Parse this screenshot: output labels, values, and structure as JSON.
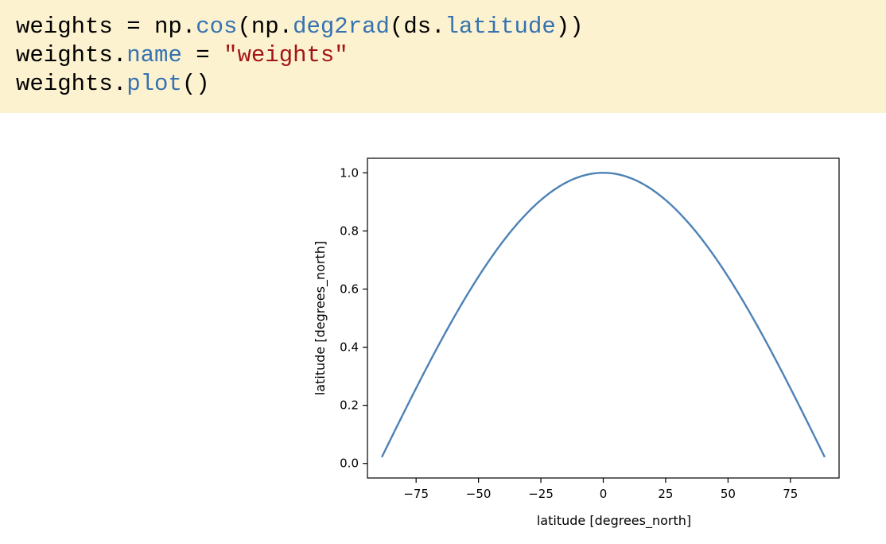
{
  "code_cell": {
    "lines": [
      [
        {
          "text": "weights = np.",
          "kind": "plain"
        },
        {
          "text": "cos",
          "kind": "attr"
        },
        {
          "text": "(np.",
          "kind": "plain"
        },
        {
          "text": "deg2rad",
          "kind": "attr"
        },
        {
          "text": "(ds.",
          "kind": "plain"
        },
        {
          "text": "latitude",
          "kind": "attr"
        },
        {
          "text": "))",
          "kind": "plain"
        }
      ],
      [
        {
          "text": "weights.",
          "kind": "plain"
        },
        {
          "text": "name",
          "kind": "attr"
        },
        {
          "text": " = ",
          "kind": "plain"
        },
        {
          "text": "\"weights\"",
          "kind": "str"
        }
      ],
      [
        {
          "text": "weights.",
          "kind": "plain"
        },
        {
          "text": "plot",
          "kind": "attr"
        },
        {
          "text": "()",
          "kind": "plain"
        }
      ]
    ],
    "colors": {
      "background": "#fcf2d0",
      "attr": "#3572b0",
      "string": "#a31515"
    }
  },
  "chart_data": {
    "type": "line",
    "title": "",
    "xlabel": "latitude [degrees_north]",
    "ylabel": "latitude [degrees_north]",
    "xlim": [
      -94.5,
      94.5
    ],
    "ylim": [
      -0.05,
      1.05
    ],
    "xticks": [
      -75,
      -50,
      -25,
      0,
      25,
      50,
      75
    ],
    "xtick_labels": [
      "−75",
      "−50",
      "−25",
      "0",
      "25",
      "50",
      "75"
    ],
    "yticks": [
      0.0,
      0.2,
      0.4,
      0.6,
      0.8,
      1.0
    ],
    "ytick_labels": [
      "0.0",
      "0.2",
      "0.4",
      "0.6",
      "0.8",
      "1.0"
    ],
    "grid": false,
    "line_color": "#4c82b5",
    "series": [
      {
        "x": [
          -88.75,
          -80,
          -70,
          -60,
          -50,
          -40,
          -30,
          -20,
          -10,
          0,
          10,
          20,
          30,
          40,
          50,
          60,
          70,
          80,
          88.75
        ],
        "values": [
          0.022,
          0.174,
          0.342,
          0.5,
          0.643,
          0.766,
          0.866,
          0.94,
          0.985,
          1.0,
          0.985,
          0.94,
          0.866,
          0.766,
          0.643,
          0.5,
          0.342,
          0.174,
          0.022
        ]
      }
    ]
  }
}
